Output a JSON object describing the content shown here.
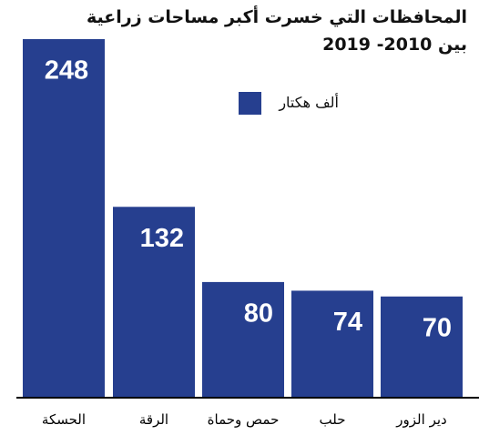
{
  "chart_data": {
    "type": "bar",
    "title": "المحافظات التي خسرت أكبر مساحات زراعية",
    "subtitle": "بين 2010- 2019",
    "categories": [
      "الحسكة",
      "الرقة",
      "حمص وحماة",
      "حلب",
      "دير الزور"
    ],
    "series": [
      {
        "name": "ألف هكتار",
        "color": "#263f8f",
        "values": [
          248,
          132,
          80,
          74,
          70
        ]
      }
    ]
  }
}
